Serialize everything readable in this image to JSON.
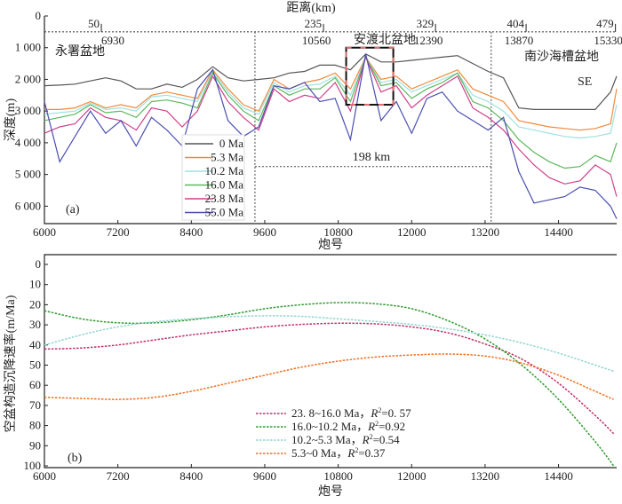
{
  "chart_data": [
    {
      "type": "line",
      "panel_label": "(a)",
      "title_top_axis": "距离(km)",
      "xlabel": "炮号",
      "ylabel": "深度(m)",
      "xlim": [
        6000,
        15350
      ],
      "ylim": [
        0,
        6550
      ],
      "y_inverted": true,
      "xticks": [
        "6000",
        "7200",
        "8400",
        "9600",
        "10800",
        "12000",
        "13200",
        "14400"
      ],
      "xtick_values": [
        6000,
        7200,
        8400,
        9600,
        10800,
        12000,
        13200,
        14400
      ],
      "yticks": [
        "0",
        "1 000",
        "2 000",
        "3 000",
        "4 000",
        "5 000",
        "6 000"
      ],
      "ytick_values": [
        0,
        1000,
        2000,
        3000,
        4000,
        5000,
        6000
      ],
      "distance_marks": [
        {
          "km": "50",
          "shot": "6930",
          "shot_value": 6930
        },
        {
          "km": "235",
          "shot": "10560",
          "shot_value": 10560
        },
        {
          "km": "329",
          "shot": "12390",
          "shot_value": 12390
        },
        {
          "km": "404",
          "shot": "13870",
          "shot_value": 13870
        },
        {
          "km": "479",
          "shot": "15330",
          "shot_value": 15330
        }
      ],
      "annotations": {
        "basin_left": "永署盆地",
        "basin_mid": "安渡北盆地",
        "basin_right": "南沙海槽盆地",
        "direction": "SE",
        "span": "198 km",
        "span_from_shot": 9440,
        "span_to_shot": 13300,
        "span_depth": 4750,
        "box_shots": [
          10930,
          11700
        ],
        "box_depths": [
          1000,
          2800
        ],
        "dotted_depth": 500
      },
      "legend_position": "bottom-left",
      "x": [
        6000,
        6250,
        6500,
        6750,
        7000,
        7250,
        7500,
        7750,
        8000,
        8250,
        8500,
        8750,
        9000,
        9250,
        9500,
        9750,
        10000,
        10250,
        10500,
        10750,
        11000,
        11250,
        11500,
        11750,
        12000,
        12250,
        12500,
        12750,
        13000,
        13250,
        13500,
        13750,
        14000,
        14250,
        14500,
        14750,
        15000,
        15250,
        15350
      ],
      "series": [
        {
          "name": "0 Ma",
          "color": "#555555",
          "values": [
            2200,
            2180,
            2150,
            2050,
            1950,
            2050,
            2300,
            2300,
            2150,
            2250,
            2000,
            1600,
            1950,
            2050,
            2000,
            1950,
            1800,
            1750,
            1550,
            1550,
            1700,
            1200,
            1450,
            1450,
            1400,
            1350,
            1300,
            1250,
            1500,
            1750,
            1950,
            2900,
            2950,
            2950,
            2950,
            2950,
            2950,
            2400,
            1900
          ]
        },
        {
          "name": "5.3 Ma",
          "color": "#f08a3c",
          "values": [
            2950,
            2950,
            2900,
            2700,
            2900,
            2800,
            2900,
            2500,
            2400,
            2500,
            2600,
            1700,
            2300,
            2800,
            3000,
            2000,
            2300,
            2100,
            2000,
            1800,
            2300,
            1300,
            2000,
            1900,
            2300,
            2100,
            1900,
            1700,
            2300,
            2500,
            2700,
            3300,
            3400,
            3500,
            3550,
            3600,
            3550,
            3400,
            2300
          ]
        },
        {
          "name": "10.2 Ma",
          "color": "#9fe0e0",
          "values": [
            3100,
            3050,
            3000,
            2750,
            2950,
            2900,
            3000,
            2550,
            2500,
            2600,
            2700,
            1750,
            2400,
            2900,
            3100,
            2100,
            2400,
            2200,
            2150,
            1900,
            2500,
            1300,
            2100,
            2000,
            2400,
            2200,
            2000,
            1800,
            2500,
            2700,
            3000,
            3500,
            3600,
            3700,
            3800,
            3850,
            3800,
            3700,
            2800
          ]
        },
        {
          "name": "16.0 Ma",
          "color": "#5cb85c",
          "values": [
            3300,
            3200,
            3100,
            2800,
            3050,
            3000,
            3200,
            2700,
            2650,
            2750,
            2900,
            1800,
            2500,
            3000,
            3300,
            2200,
            2500,
            2300,
            2300,
            1950,
            2700,
            1300,
            2200,
            2100,
            2600,
            2300,
            2100,
            1800,
            2700,
            2900,
            3300,
            3900,
            4300,
            4600,
            4800,
            4750,
            4400,
            4600,
            4000
          ]
        },
        {
          "name": "23.8 Ma",
          "color": "#d0408a",
          "values": [
            3700,
            3500,
            3400,
            2900,
            3200,
            3300,
            3600,
            2900,
            3000,
            3500,
            3000,
            1900,
            2700,
            3200,
            3600,
            2300,
            2700,
            2500,
            2600,
            2100,
            3000,
            1300,
            2400,
            2200,
            2900,
            2500,
            2200,
            1900,
            2900,
            3200,
            3600,
            4200,
            4700,
            5100,
            5300,
            5200,
            4700,
            5000,
            5700
          ]
        },
        {
          "name": "55.0 Ma",
          "color": "#4a4fb0",
          "values": [
            2700,
            4600,
            3800,
            3000,
            3700,
            3300,
            4100,
            3200,
            3600,
            4100,
            2300,
            1700,
            3300,
            3800,
            3500,
            2200,
            2300,
            2100,
            2700,
            2600,
            3900,
            1200,
            3300,
            2700,
            3700,
            2600,
            2400,
            3000,
            3300,
            3600,
            3200,
            4900,
            5900,
            5800,
            5700,
            5400,
            5500,
            6000,
            6400
          ]
        }
      ]
    },
    {
      "type": "line",
      "panel_label": "(b)",
      "xlabel": "炮号",
      "ylabel": "空盆构造沉降速率(m/Ma)",
      "xlim": [
        6000,
        15350
      ],
      "ylim": [
        0,
        100
      ],
      "y_inverted": true,
      "xticks": [
        "6000",
        "7200",
        "8400",
        "9600",
        "10800",
        "12000",
        "13200",
        "14400"
      ],
      "xtick_values": [
        6000,
        7200,
        8400,
        9600,
        10800,
        12000,
        13200,
        14400
      ],
      "yticks": [
        "0",
        "10",
        "20",
        "30",
        "40",
        "50",
        "60",
        "70",
        "80",
        "90",
        "100"
      ],
      "ytick_values": [
        0,
        10,
        20,
        30,
        40,
        50,
        60,
        70,
        80,
        90,
        100
      ],
      "legend_position": "bottom-center",
      "x": [
        6000,
        6600,
        7200,
        7800,
        8400,
        9000,
        9600,
        10200,
        10800,
        11400,
        12000,
        12600,
        13200,
        13800,
        14400,
        15000,
        15300
      ],
      "series": [
        {
          "name": "23. 8~16.0 Ma，",
          "r2_label": "R",
          "r2_value": "=0. 57",
          "color": "#c0306a",
          "values": [
            42,
            41.5,
            40,
            37.5,
            35,
            33,
            31,
            29.8,
            29.2,
            29.5,
            31,
            34,
            39.5,
            47,
            59,
            75,
            84
          ]
        },
        {
          "name": "16.0~10.2 Ma，",
          "r2_label": "R",
          "r2_value": "=0.92",
          "color": "#2e9a2e",
          "values": [
            23,
            27,
            29,
            29,
            27.5,
            25,
            22,
            20,
            19,
            19.5,
            22,
            28,
            37,
            50,
            67,
            88,
            100
          ]
        },
        {
          "name": "10.2~5.3 Ma，",
          "r2_label": "R",
          "r2_value": "=0.54",
          "color": "#8fd6d0",
          "values": [
            40,
            35,
            31,
            28.5,
            27,
            26,
            25.5,
            25.8,
            27,
            28.3,
            29.8,
            32,
            35,
            39,
            44,
            50,
            53
          ]
        },
        {
          "name": "5.3~0 Ma，",
          "r2_label": "R",
          "r2_value": "=0.37",
          "color": "#f07020",
          "values": [
            66,
            66.5,
            67,
            66,
            63,
            59,
            55,
            51,
            48,
            46,
            45,
            44.5,
            45.5,
            49,
            55,
            63,
            67
          ]
        }
      ]
    }
  ]
}
